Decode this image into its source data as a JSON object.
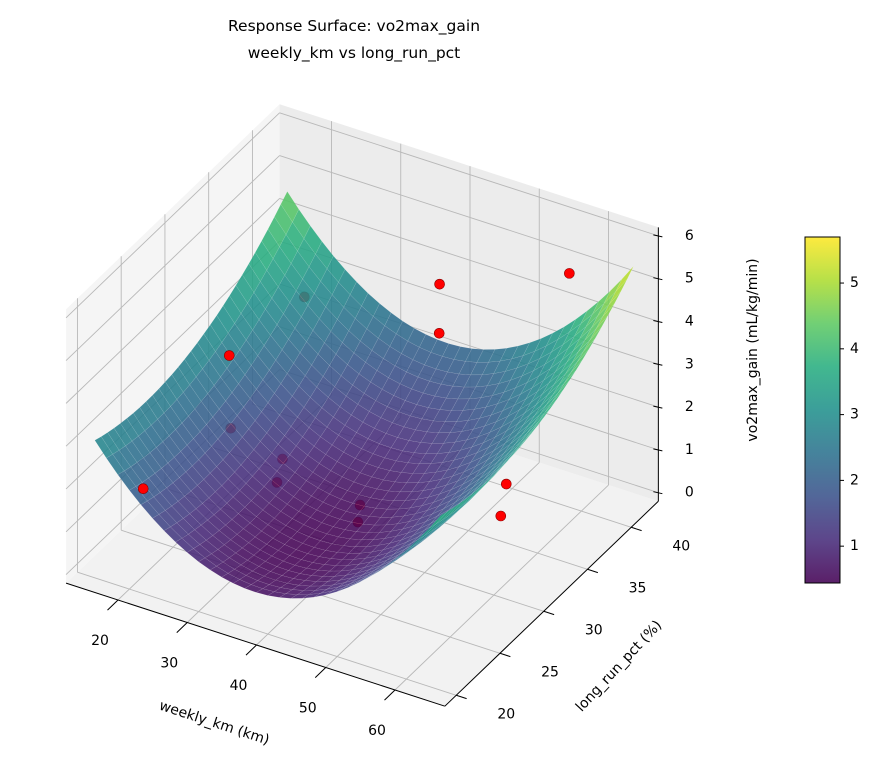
{
  "chart_data": {
    "type": "surface",
    "title": [
      "Response Surface: vo2max_gain",
      "weekly_km vs long_run_pct"
    ],
    "xlabel": "weekly_km (km)",
    "ylabel": "long_run_pct (%)",
    "zlabel": "vo2max_gain (mL/kg/min)",
    "xlim": [
      12.5,
      67.2
    ],
    "ylim": [
      18.7,
      43.1
    ],
    "zlim": [
      -0.2,
      6.2
    ],
    "x_ticks": [
      20,
      30,
      40,
      50,
      60
    ],
    "y_ticks": [
      20,
      25,
      30,
      35,
      40
    ],
    "z_ticks": [
      0,
      1,
      2,
      3,
      4,
      5,
      6
    ],
    "grid": true,
    "surface": {
      "colormap": "viridis",
      "x_range": [
        15,
        65
      ],
      "y_range": [
        20,
        42
      ],
      "min_value": 0.44,
      "x_center": 38,
      "y_center": 26,
      "x_curvature": 0.0044,
      "y_curvature": 0.0068
    },
    "points": [
      {
        "x": 22,
        "y": 20,
        "z": 2.25,
        "above_surface": true
      },
      {
        "x": 18,
        "y": 33,
        "z": 2.6,
        "above_surface": true
      },
      {
        "x": 61,
        "y": 30,
        "z": 1.7,
        "above_surface": true
      },
      {
        "x": 20,
        "y": 40,
        "z": 2.7,
        "above_surface": false
      },
      {
        "x": 37,
        "y": 42,
        "z": 3.5,
        "above_surface": false
      },
      {
        "x": 42,
        "y": 38,
        "z": 3.4,
        "above_surface": false
      },
      {
        "x": 57,
        "y": 41,
        "z": 5.0,
        "above_surface": false
      },
      {
        "x": 22,
        "y": 30,
        "z": 1.7,
        "above_surface": false
      },
      {
        "x": 32,
        "y": 28,
        "z": 1.9,
        "above_surface": false
      },
      {
        "x": 35,
        "y": 25,
        "z": 2.1,
        "above_surface": false
      },
      {
        "x": 47,
        "y": 25,
        "z": 2.2,
        "above_surface": false
      },
      {
        "x": 53,
        "y": 20,
        "z": 3.1,
        "above_surface": false
      },
      {
        "x": 58,
        "y": 33,
        "z": 1.7,
        "above_surface": false
      }
    ],
    "point_color": "#ff0000",
    "colorbar": {
      "range": [
        0.44,
        5.7
      ],
      "ticks": [
        1,
        2,
        3,
        4,
        5
      ]
    }
  }
}
